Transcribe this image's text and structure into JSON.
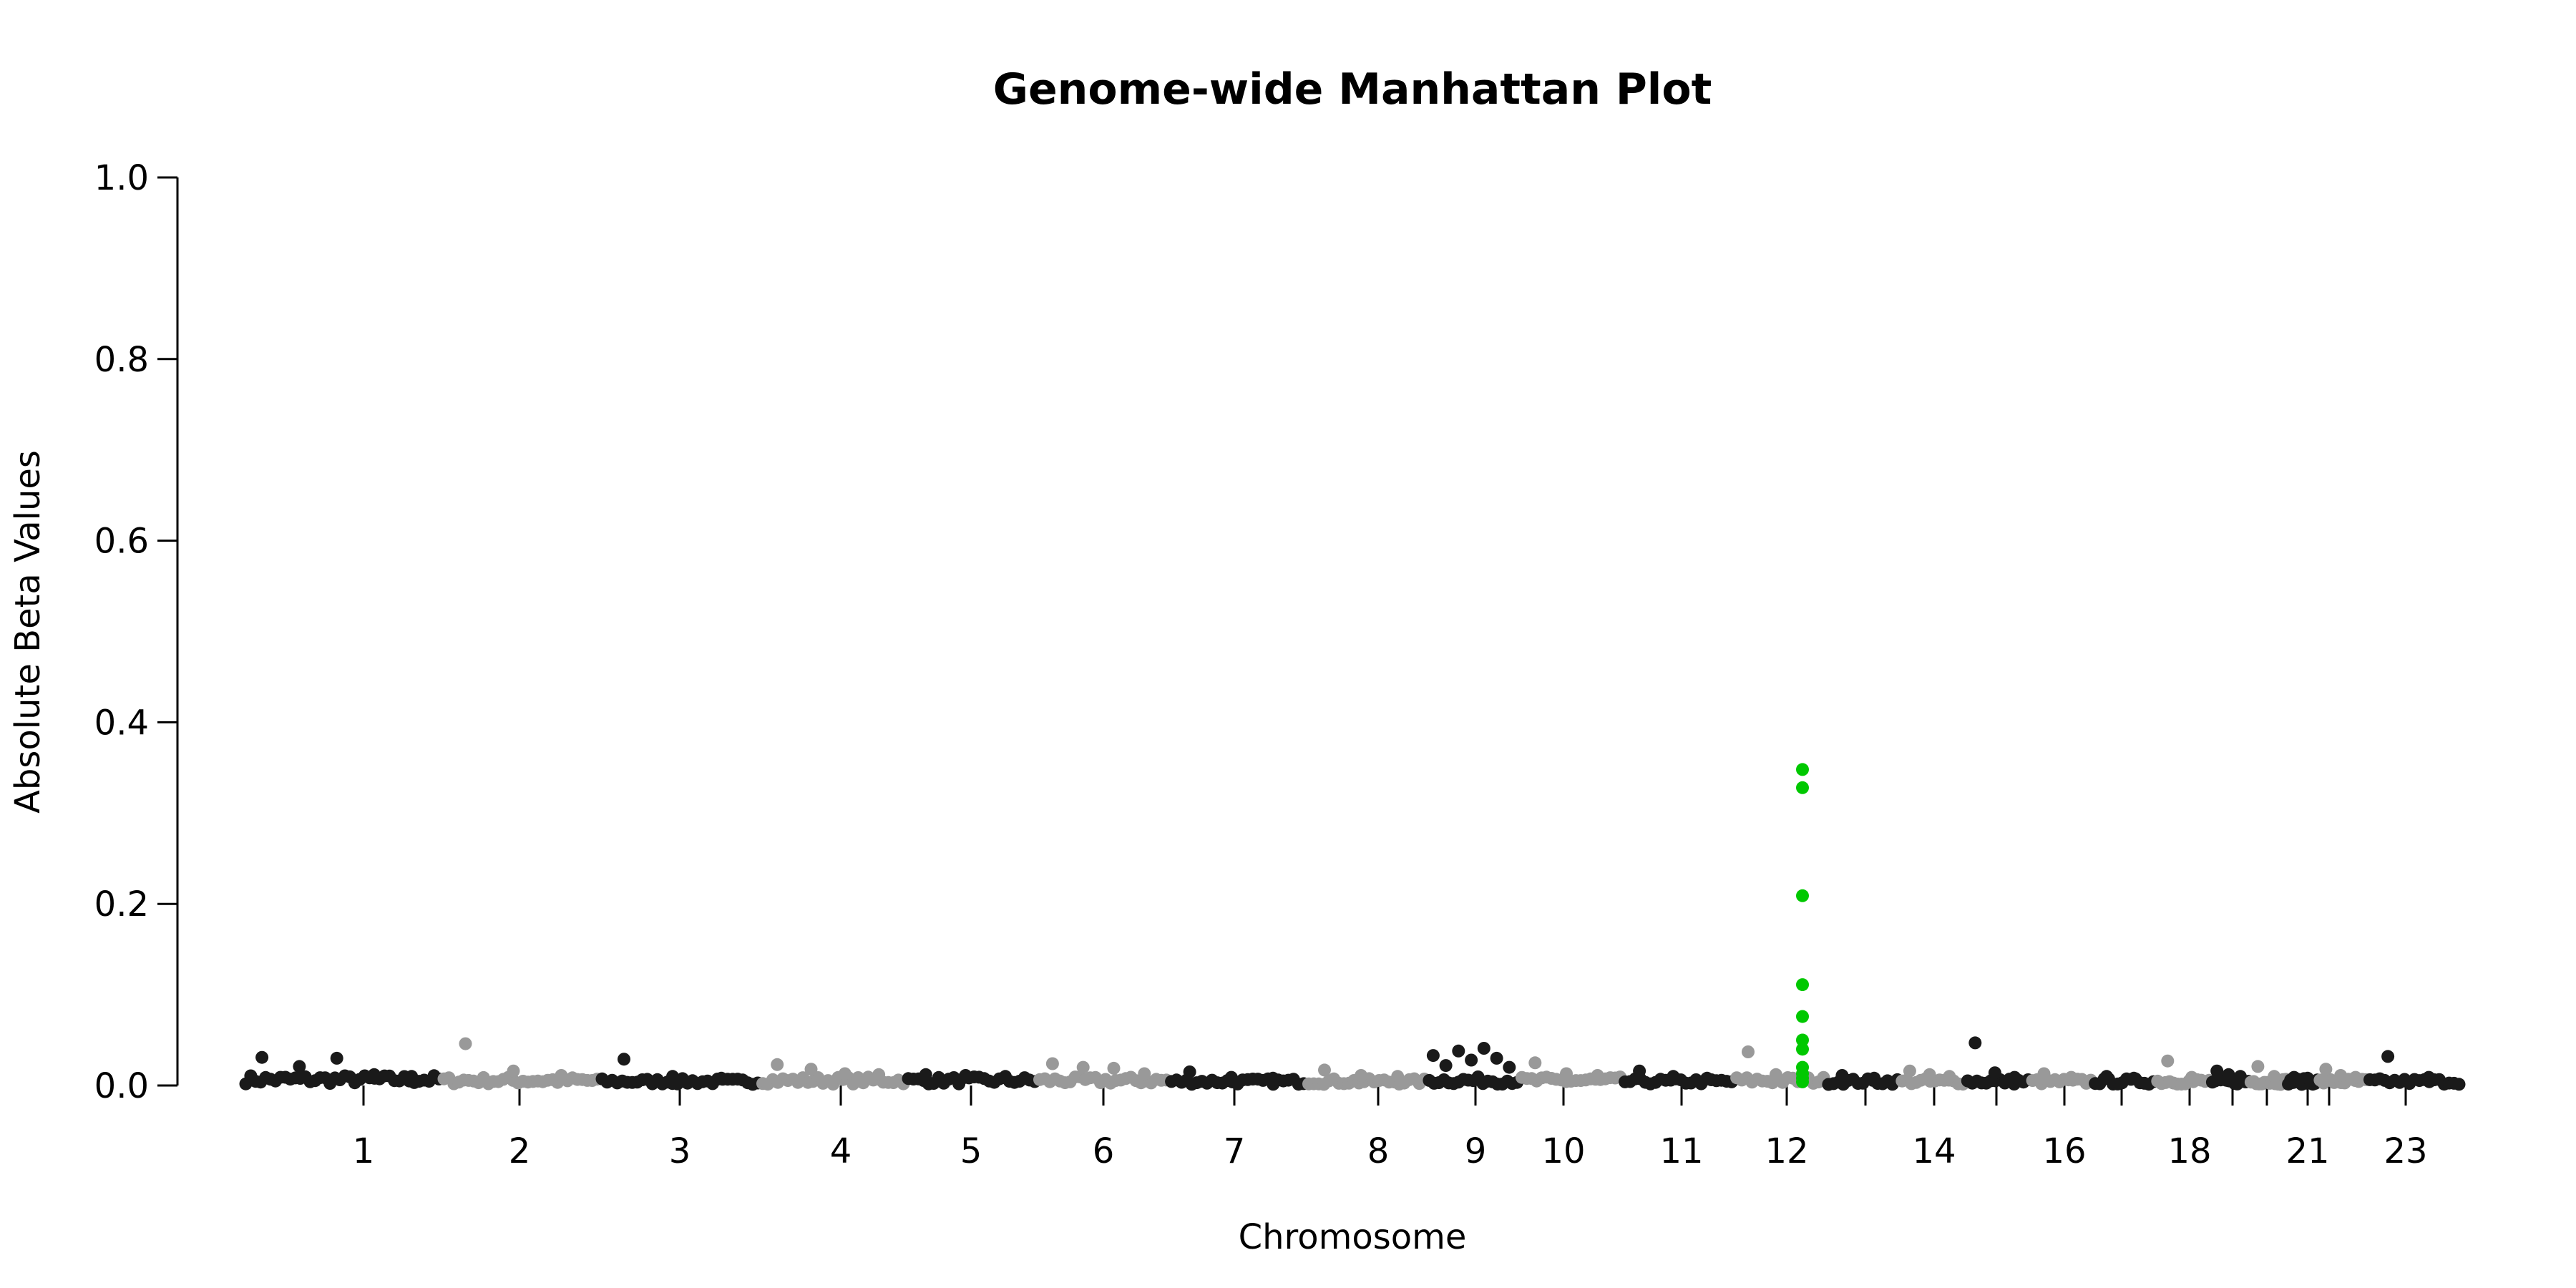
{
  "chart_data": {
    "type": "scatter",
    "title": "Genome-wide Manhattan Plot",
    "xlabel": "Chromosome",
    "ylabel": "Absolute Beta Values",
    "ylim": [
      0,
      1.0
    ],
    "yticks": [
      "0.0",
      "0.2",
      "0.4",
      "0.6",
      "0.8",
      "1.0"
    ],
    "grid": false,
    "legend": "none",
    "colors": {
      "odd_chromosome": "#1a1a1a",
      "even_chromosome": "#999999",
      "highlight": "#00c800"
    },
    "chromosomes": [
      {
        "name": "1",
        "label": "1",
        "baseline": 0.006,
        "peaks": [
          0.031,
          0.021,
          0.03,
          0.012,
          0.01
        ]
      },
      {
        "name": "2",
        "label": "2",
        "baseline": 0.005,
        "peaks": [
          0.046,
          0.016,
          0.011
        ]
      },
      {
        "name": "3",
        "label": "3",
        "baseline": 0.004,
        "peaks": [
          0.029,
          0.01,
          0.008
        ]
      },
      {
        "name": "4",
        "label": "4",
        "baseline": 0.005,
        "peaks": [
          0.023,
          0.018,
          0.013,
          0.012
        ]
      },
      {
        "name": "5",
        "label": "5",
        "baseline": 0.005,
        "peaks": [
          0.012,
          0.011,
          0.01
        ]
      },
      {
        "name": "6",
        "label": "6",
        "baseline": 0.005,
        "peaks": [
          0.024,
          0.02,
          0.019,
          0.013
        ]
      },
      {
        "name": "7",
        "label": "7",
        "baseline": 0.004,
        "peaks": [
          0.015,
          0.009,
          0.008
        ]
      },
      {
        "name": "8",
        "label": "8",
        "baseline": 0.004,
        "peaks": [
          0.017,
          0.011,
          0.01
        ]
      },
      {
        "name": "9",
        "label": "9",
        "baseline": 0.005,
        "peaks": [
          0.033,
          0.022,
          0.038,
          0.028,
          0.041,
          0.03,
          0.02
        ]
      },
      {
        "name": "10",
        "label": "10",
        "baseline": 0.005,
        "peaks": [
          0.025,
          0.013,
          0.011
        ]
      },
      {
        "name": "11",
        "label": "11",
        "baseline": 0.004,
        "peaks": [
          0.016,
          0.01,
          0.008
        ]
      },
      {
        "name": "12",
        "label": "12",
        "baseline": 0.005,
        "peaks": [
          0.037,
          0.012,
          0.009
        ]
      },
      {
        "name": "13",
        "label": "",
        "baseline": 0.004,
        "peaks": [
          0.011,
          0.008
        ]
      },
      {
        "name": "14",
        "label": "14",
        "baseline": 0.004,
        "peaks": [
          0.016,
          0.012,
          0.01
        ]
      },
      {
        "name": "15",
        "label": "",
        "baseline": 0.004,
        "peaks": [
          0.047,
          0.014,
          0.009
        ]
      },
      {
        "name": "16",
        "label": "16",
        "baseline": 0.004,
        "peaks": [
          0.013,
          0.009
        ]
      },
      {
        "name": "17",
        "label": "",
        "baseline": 0.004,
        "peaks": [
          0.01,
          0.008
        ]
      },
      {
        "name": "18",
        "label": "18",
        "baseline": 0.004,
        "peaks": [
          0.027,
          0.009
        ]
      },
      {
        "name": "19",
        "label": "",
        "baseline": 0.004,
        "peaks": [
          0.016,
          0.012,
          0.01
        ]
      },
      {
        "name": "20",
        "label": "",
        "baseline": 0.004,
        "peaks": [
          0.021,
          0.01
        ]
      },
      {
        "name": "21",
        "label": "21",
        "baseline": 0.004,
        "peaks": [
          0.009,
          0.008
        ]
      },
      {
        "name": "22",
        "label": "",
        "baseline": 0.004,
        "peaks": [
          0.018,
          0.011,
          0.009
        ]
      },
      {
        "name": "23",
        "label": "23",
        "baseline": 0.004,
        "peaks": [
          0.032,
          0.009
        ]
      }
    ],
    "highlight": {
      "chromosome": "12",
      "values": [
        0.348,
        0.328,
        0.209,
        0.111,
        0.076,
        0.05,
        0.04,
        0.02,
        0.013,
        0.008,
        0.004
      ]
    }
  }
}
